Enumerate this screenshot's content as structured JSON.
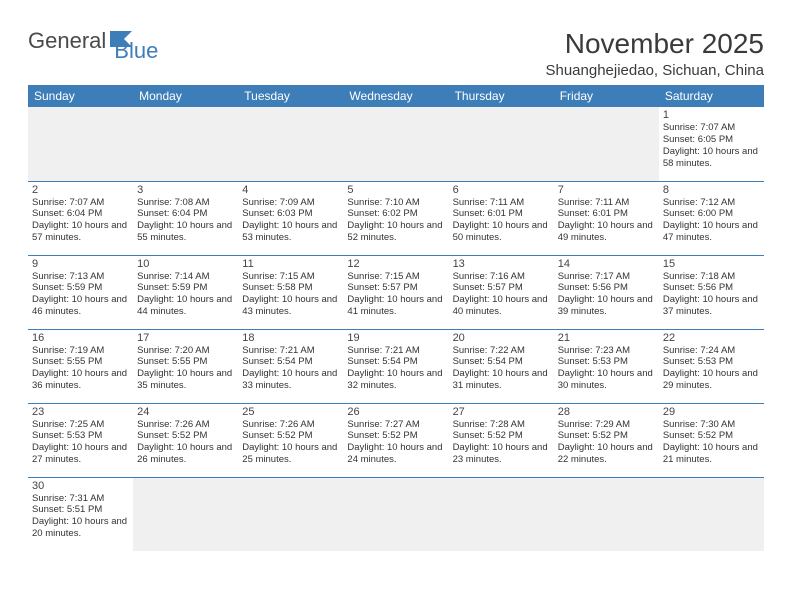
{
  "brand": {
    "part1": "General",
    "part2": "Blue"
  },
  "title": "November 2025",
  "location": "Shuanghejiedao, Sichuan, China",
  "header_bg": "#3d7db8",
  "header_fg": "#ffffff",
  "day_headers": [
    "Sunday",
    "Monday",
    "Tuesday",
    "Wednesday",
    "Thursday",
    "Friday",
    "Saturday"
  ],
  "weeks": [
    [
      null,
      null,
      null,
      null,
      null,
      null,
      {
        "n": "1",
        "sr": "7:07 AM",
        "ss": "6:05 PM",
        "dl": "10 hours and 58 minutes."
      }
    ],
    [
      {
        "n": "2",
        "sr": "7:07 AM",
        "ss": "6:04 PM",
        "dl": "10 hours and 57 minutes."
      },
      {
        "n": "3",
        "sr": "7:08 AM",
        "ss": "6:04 PM",
        "dl": "10 hours and 55 minutes."
      },
      {
        "n": "4",
        "sr": "7:09 AM",
        "ss": "6:03 PM",
        "dl": "10 hours and 53 minutes."
      },
      {
        "n": "5",
        "sr": "7:10 AM",
        "ss": "6:02 PM",
        "dl": "10 hours and 52 minutes."
      },
      {
        "n": "6",
        "sr": "7:11 AM",
        "ss": "6:01 PM",
        "dl": "10 hours and 50 minutes."
      },
      {
        "n": "7",
        "sr": "7:11 AM",
        "ss": "6:01 PM",
        "dl": "10 hours and 49 minutes."
      },
      {
        "n": "8",
        "sr": "7:12 AM",
        "ss": "6:00 PM",
        "dl": "10 hours and 47 minutes."
      }
    ],
    [
      {
        "n": "9",
        "sr": "7:13 AM",
        "ss": "5:59 PM",
        "dl": "10 hours and 46 minutes."
      },
      {
        "n": "10",
        "sr": "7:14 AM",
        "ss": "5:59 PM",
        "dl": "10 hours and 44 minutes."
      },
      {
        "n": "11",
        "sr": "7:15 AM",
        "ss": "5:58 PM",
        "dl": "10 hours and 43 minutes."
      },
      {
        "n": "12",
        "sr": "7:15 AM",
        "ss": "5:57 PM",
        "dl": "10 hours and 41 minutes."
      },
      {
        "n": "13",
        "sr": "7:16 AM",
        "ss": "5:57 PM",
        "dl": "10 hours and 40 minutes."
      },
      {
        "n": "14",
        "sr": "7:17 AM",
        "ss": "5:56 PM",
        "dl": "10 hours and 39 minutes."
      },
      {
        "n": "15",
        "sr": "7:18 AM",
        "ss": "5:56 PM",
        "dl": "10 hours and 37 minutes."
      }
    ],
    [
      {
        "n": "16",
        "sr": "7:19 AM",
        "ss": "5:55 PM",
        "dl": "10 hours and 36 minutes."
      },
      {
        "n": "17",
        "sr": "7:20 AM",
        "ss": "5:55 PM",
        "dl": "10 hours and 35 minutes."
      },
      {
        "n": "18",
        "sr": "7:21 AM",
        "ss": "5:54 PM",
        "dl": "10 hours and 33 minutes."
      },
      {
        "n": "19",
        "sr": "7:21 AM",
        "ss": "5:54 PM",
        "dl": "10 hours and 32 minutes."
      },
      {
        "n": "20",
        "sr": "7:22 AM",
        "ss": "5:54 PM",
        "dl": "10 hours and 31 minutes."
      },
      {
        "n": "21",
        "sr": "7:23 AM",
        "ss": "5:53 PM",
        "dl": "10 hours and 30 minutes."
      },
      {
        "n": "22",
        "sr": "7:24 AM",
        "ss": "5:53 PM",
        "dl": "10 hours and 29 minutes."
      }
    ],
    [
      {
        "n": "23",
        "sr": "7:25 AM",
        "ss": "5:53 PM",
        "dl": "10 hours and 27 minutes."
      },
      {
        "n": "24",
        "sr": "7:26 AM",
        "ss": "5:52 PM",
        "dl": "10 hours and 26 minutes."
      },
      {
        "n": "25",
        "sr": "7:26 AM",
        "ss": "5:52 PM",
        "dl": "10 hours and 25 minutes."
      },
      {
        "n": "26",
        "sr": "7:27 AM",
        "ss": "5:52 PM",
        "dl": "10 hours and 24 minutes."
      },
      {
        "n": "27",
        "sr": "7:28 AM",
        "ss": "5:52 PM",
        "dl": "10 hours and 23 minutes."
      },
      {
        "n": "28",
        "sr": "7:29 AM",
        "ss": "5:52 PM",
        "dl": "10 hours and 22 minutes."
      },
      {
        "n": "29",
        "sr": "7:30 AM",
        "ss": "5:52 PM",
        "dl": "10 hours and 21 minutes."
      }
    ],
    [
      {
        "n": "30",
        "sr": "7:31 AM",
        "ss": "5:51 PM",
        "dl": "10 hours and 20 minutes."
      },
      null,
      null,
      null,
      null,
      null,
      null
    ]
  ],
  "labels": {
    "sunrise": "Sunrise:",
    "sunset": "Sunset:",
    "daylight": "Daylight:"
  }
}
